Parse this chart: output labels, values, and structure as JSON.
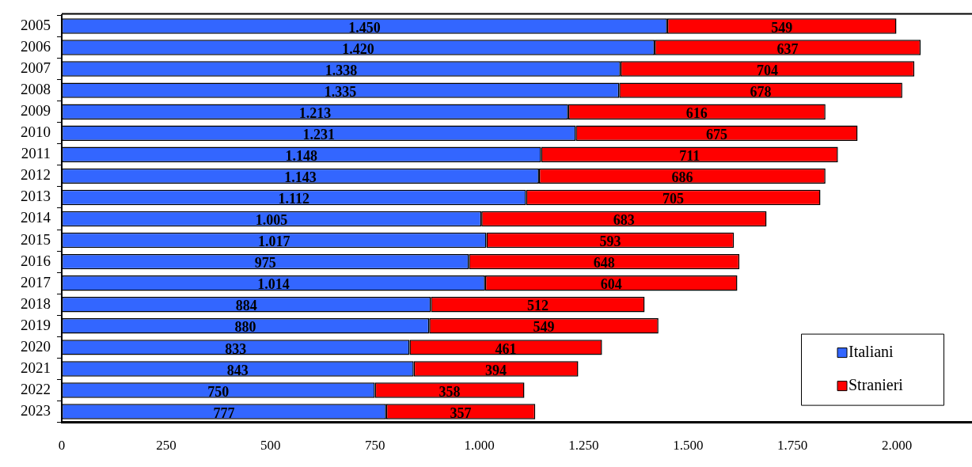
{
  "chart_data": {
    "type": "bar",
    "orientation": "horizontal",
    "stacked": true,
    "categories": [
      "2005",
      "2006",
      "2007",
      "2008",
      "2009",
      "2010",
      "2011",
      "2012",
      "2013",
      "2014",
      "2015",
      "2016",
      "2017",
      "2018",
      "2019",
      "2020",
      "2021",
      "2022",
      "2023"
    ],
    "series": [
      {
        "name": "Italiani",
        "color": "#3366ff",
        "values": [
          1450,
          1420,
          1338,
          1335,
          1213,
          1231,
          1148,
          1143,
          1112,
          1005,
          1017,
          975,
          1014,
          884,
          880,
          833,
          843,
          750,
          777
        ],
        "value_labels": [
          "1.450",
          "1.420",
          "1.338",
          "1.335",
          "1.213",
          "1.231",
          "1.148",
          "1.143",
          "1.112",
          "1.005",
          "1.017",
          "975",
          "1.014",
          "884",
          "880",
          "833",
          "843",
          "750",
          "777"
        ]
      },
      {
        "name": "Stranieri",
        "color": "#ff0000",
        "values": [
          549,
          637,
          704,
          678,
          616,
          675,
          711,
          686,
          705,
          683,
          593,
          648,
          604,
          512,
          549,
          461,
          394,
          358,
          357
        ],
        "value_labels": [
          "549",
          "637",
          "704",
          "678",
          "616",
          "675",
          "711",
          "686",
          "705",
          "683",
          "593",
          "648",
          "604",
          "512",
          "549",
          "461",
          "394",
          "358",
          "357"
        ]
      }
    ],
    "xlim": [
      0,
      2180
    ],
    "xticks": [
      0,
      {
        "value": 250,
        "label": "250"
      },
      {
        "value": 500,
        "label": "500"
      },
      {
        "value": 750,
        "label": "750"
      },
      {
        "value": 1000,
        "label": "1.000"
      },
      {
        "value": 1250,
        "label": "1.250"
      },
      {
        "value": 1500,
        "label": "1.500"
      },
      {
        "value": 1750,
        "label": "1.750"
      },
      {
        "value": 2000,
        "label": "2.000"
      }
    ],
    "grid": false,
    "legend": "bottom right"
  }
}
